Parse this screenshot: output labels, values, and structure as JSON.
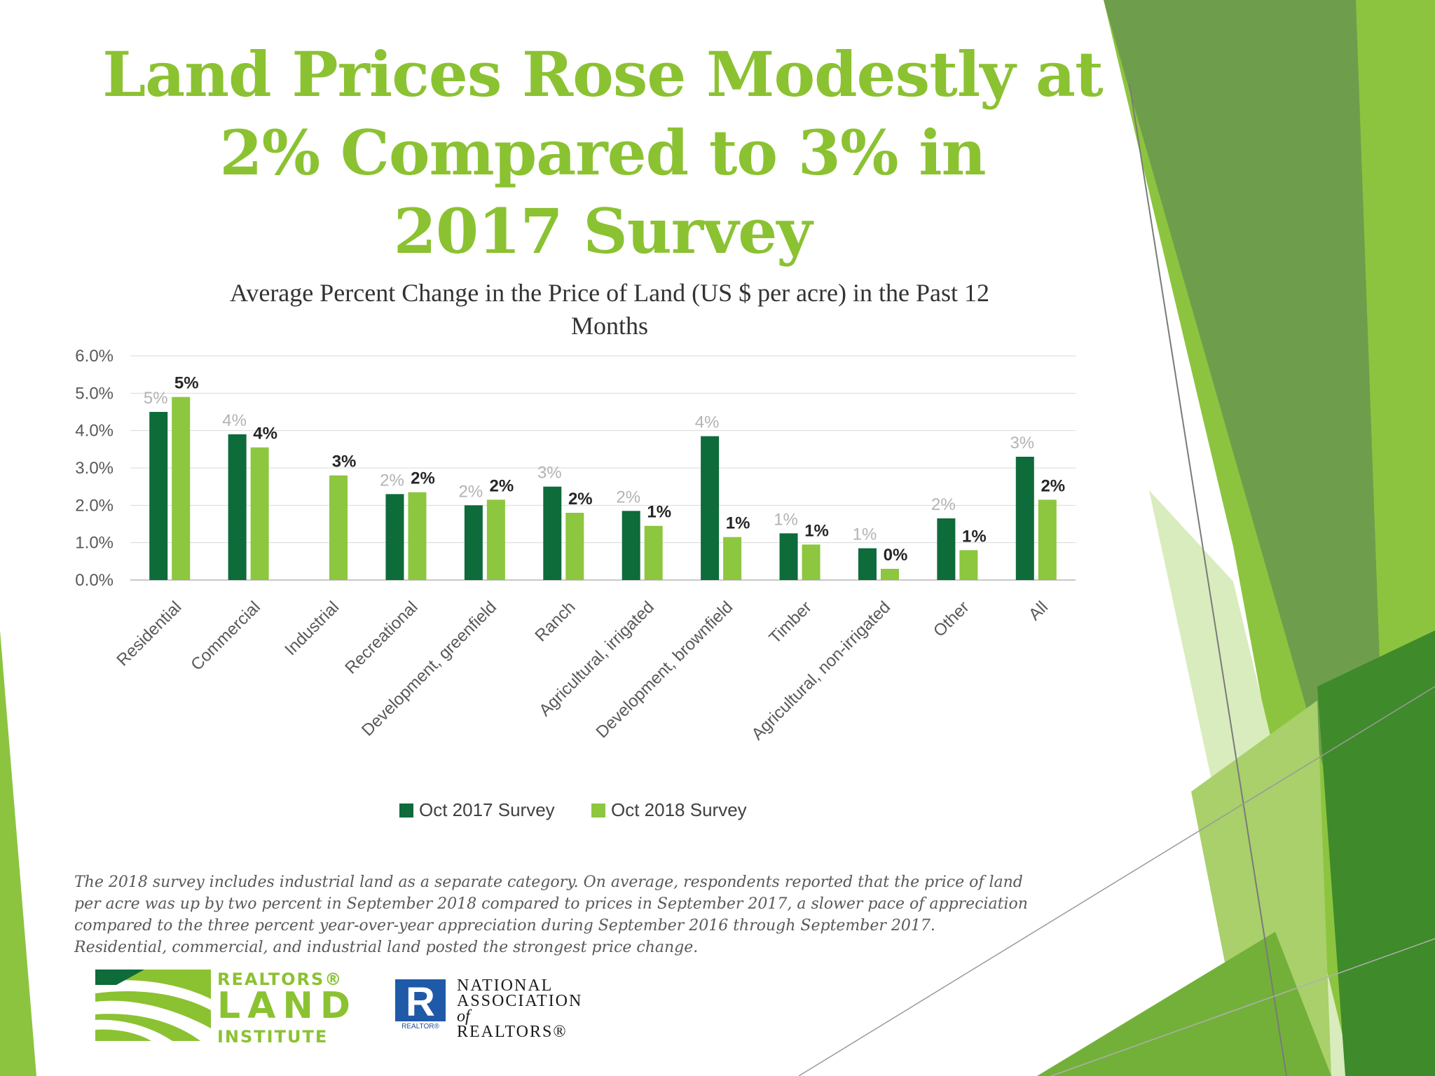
{
  "title": {
    "line1": "Land Prices Rose Modestly at",
    "line2": "2% Compared to  3% in",
    "line3": "2017 Survey"
  },
  "chart_data": {
    "type": "bar",
    "title_line1": "Average Percent Change in the Price of Land (US $ per acre) in the Past 12",
    "title_line2": "Months",
    "categories": [
      "Residential",
      "Commercial",
      "Industrial",
      "Recreational",
      "Development, greenfield",
      "Ranch",
      "Agricultural, irrigated",
      "Development, brownfield",
      "Timber",
      "Agricultural, non-irrigated",
      "Other",
      "All"
    ],
    "series": [
      {
        "name": "Oct 2017 Survey",
        "color": "#0e6b3a",
        "values": [
          4.5,
          3.9,
          null,
          2.3,
          2.0,
          2.5,
          1.85,
          3.85,
          1.25,
          0.85,
          1.65,
          3.3
        ],
        "labels": [
          "5%",
          "4%",
          "",
          "2%",
          "2%",
          "3%",
          "2%",
          "4%",
          "1%",
          "1%",
          "2%",
          "3%"
        ]
      },
      {
        "name": "Oct 2018 Survey",
        "color": "#8dc63f",
        "values": [
          4.9,
          3.55,
          2.8,
          2.35,
          2.15,
          1.8,
          1.45,
          1.15,
          0.95,
          0.3,
          0.8,
          2.15
        ],
        "labels": [
          "5%",
          "4%",
          "3%",
          "2%",
          "2%",
          "2%",
          "1%",
          "1%",
          "1%",
          "0%",
          "1%",
          "2%"
        ]
      }
    ],
    "yticks": [
      "0.0%",
      "1.0%",
      "2.0%",
      "3.0%",
      "4.0%",
      "5.0%",
      "6.0%"
    ],
    "ylim": [
      0,
      6
    ],
    "grid": true,
    "legend_position": "bottom"
  },
  "note": {
    "line1": "The 2018 survey includes industrial land as a separate category. On average, respondents reported that the price of land",
    "line2": "per acre was up by two percent in September  2018 compared to prices in September 2017, a slower pace of appreciation",
    "line3": "compared to the three percent year-over-year appreciation during September 2016 through  September 2017.",
    "line4": "Residential, commercial, and industrial land posted the strongest price change."
  },
  "logos": {
    "rli": {
      "line1": "REALTORS®",
      "line2": "LAND",
      "line3": "INSTITUTE"
    },
    "nar": {
      "line1": "NATIONAL",
      "line2": "ASSOCIATION",
      "of": "of",
      "line3": "REALTORS®",
      "mark_caption": "REALTOR®",
      "mark_letter": "R"
    }
  },
  "colors": {
    "title_green": "#8bc232",
    "dark_green": "#0e6b3a",
    "light_green": "#8dc63f"
  }
}
